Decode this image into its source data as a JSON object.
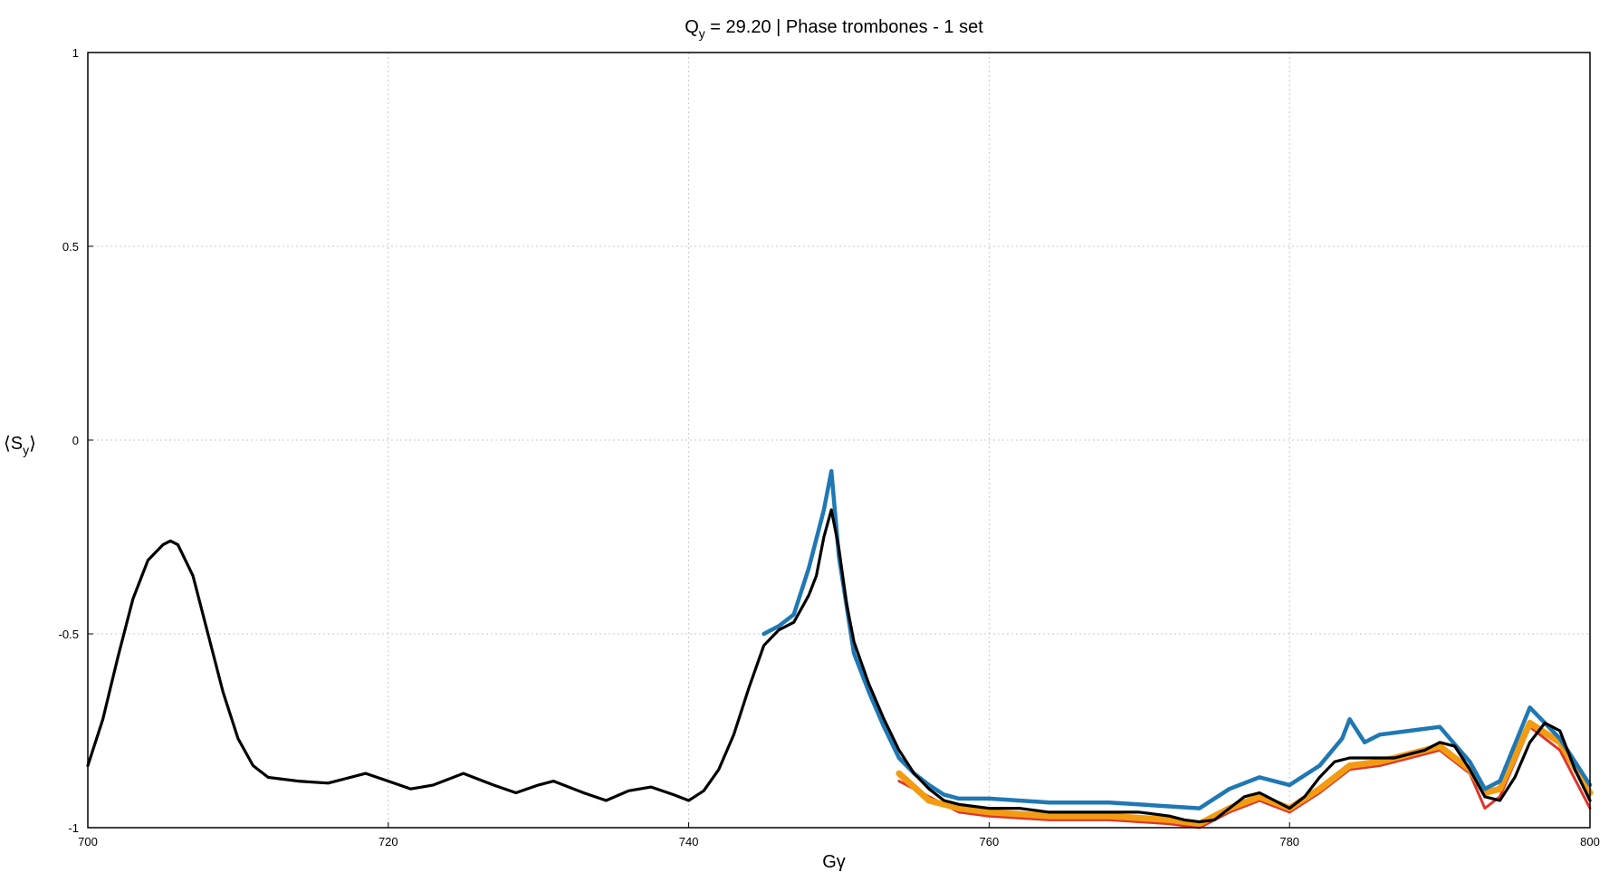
{
  "chart_data": {
    "type": "line",
    "title": {
      "main": "Q",
      "sub": "y",
      "rest": " = 29.20 | Phase trombones - 1 set"
    },
    "xlabel": "Gγ",
    "ylabel": {
      "open": "⟨S",
      "sub": "y",
      "close": "⟩"
    },
    "xlim": [
      700,
      800
    ],
    "ylim": [
      -1,
      1
    ],
    "x_ticks": [
      "700",
      "720",
      "740",
      "760",
      "780",
      "800"
    ],
    "y_ticks": [
      "1",
      "0.5",
      "0",
      "-0.5",
      "-1"
    ],
    "x_tick_values": [
      700,
      720,
      740,
      760,
      780,
      800
    ],
    "y_tick_values": [
      1,
      0.5,
      0,
      -0.5,
      -1
    ],
    "grid": true,
    "legend": "none",
    "colors": {
      "black": "#000000",
      "blue": "#1f78b4",
      "cyan": "#22a6c9",
      "purple": "#9b2fd0",
      "orange": "#f39c12",
      "yellow": "#e8c300",
      "red": "#e0342a",
      "green": "#2ca02c",
      "grid": "#c8c8c8"
    },
    "series": [
      {
        "color": "black",
        "x": [
          700,
          701,
          702,
          703,
          704,
          705,
          705.5,
          706,
          707,
          708,
          709,
          710,
          711,
          712,
          713,
          714,
          716,
          718.5,
          720,
          721.5,
          723,
          725,
          727,
          728.5,
          730,
          731,
          733,
          734.5,
          736,
          737.5,
          739,
          740,
          741,
          742,
          743,
          744,
          745,
          746,
          747,
          748,
          748.5,
          749,
          749.5,
          750,
          750.5,
          751,
          752,
          753,
          754,
          755,
          756,
          757,
          758,
          759,
          760,
          762,
          764,
          766,
          768,
          770,
          772,
          773,
          774,
          775,
          776,
          777,
          778,
          779,
          780,
          781,
          782,
          783,
          784,
          785,
          786,
          787,
          788,
          789,
          790,
          791,
          792,
          793,
          794,
          795,
          796,
          797,
          798,
          799,
          800
        ],
        "y": [
          -0.84,
          -0.72,
          -0.56,
          -0.41,
          -0.31,
          -0.27,
          -0.26,
          -0.27,
          -0.35,
          -0.5,
          -0.65,
          -0.77,
          -0.84,
          -0.87,
          -0.875,
          -0.88,
          -0.885,
          -0.86,
          -0.88,
          -0.9,
          -0.89,
          -0.86,
          -0.89,
          -0.91,
          -0.89,
          -0.88,
          -0.91,
          -0.93,
          -0.905,
          -0.895,
          -0.915,
          -0.93,
          -0.905,
          -0.85,
          -0.76,
          -0.64,
          -0.53,
          -0.49,
          -0.47,
          -0.4,
          -0.35,
          -0.25,
          -0.18,
          -0.28,
          -0.42,
          -0.52,
          -0.63,
          -0.72,
          -0.8,
          -0.86,
          -0.9,
          -0.93,
          -0.94,
          -0.945,
          -0.95,
          -0.95,
          -0.96,
          -0.96,
          -0.96,
          -0.96,
          -0.97,
          -0.98,
          -0.985,
          -0.98,
          -0.95,
          -0.92,
          -0.91,
          -0.93,
          -0.95,
          -0.92,
          -0.87,
          -0.83,
          -0.82,
          -0.82,
          -0.82,
          -0.82,
          -0.81,
          -0.8,
          -0.78,
          -0.79,
          -0.85,
          -0.92,
          -0.93,
          -0.87,
          -0.78,
          -0.73,
          -0.75,
          -0.85,
          -0.93
        ]
      },
      {
        "color": "blue",
        "x": [
          745,
          746,
          747,
          748,
          749,
          749.5,
          750,
          751,
          752,
          753,
          754,
          755,
          756,
          757,
          758,
          760,
          764,
          768,
          772,
          774,
          776,
          778,
          780,
          782,
          783.5,
          784,
          785,
          786,
          788,
          790,
          792,
          793,
          794,
          796,
          798,
          800
        ],
        "y": [
          -0.5,
          -0.48,
          -0.45,
          -0.33,
          -0.18,
          -0.08,
          -0.3,
          -0.55,
          -0.65,
          -0.74,
          -0.82,
          -0.86,
          -0.89,
          -0.915,
          -0.925,
          -0.925,
          -0.935,
          -0.935,
          -0.945,
          -0.95,
          -0.9,
          -0.87,
          -0.89,
          -0.84,
          -0.77,
          -0.72,
          -0.78,
          -0.76,
          -0.75,
          -0.74,
          -0.83,
          -0.9,
          -0.88,
          -0.69,
          -0.77,
          -0.89
        ]
      },
      {
        "color": "orange",
        "x": [
          754,
          756,
          758,
          760,
          764,
          768,
          772,
          774,
          776,
          778,
          780,
          782,
          784,
          786,
          788,
          790,
          792,
          793,
          794,
          796,
          798,
          800
        ],
        "y": [
          -0.86,
          -0.93,
          -0.95,
          -0.96,
          -0.97,
          -0.97,
          -0.98,
          -0.99,
          -0.95,
          -0.92,
          -0.95,
          -0.9,
          -0.84,
          -0.83,
          -0.81,
          -0.79,
          -0.85,
          -0.91,
          -0.9,
          -0.73,
          -0.78,
          -0.91
        ]
      },
      {
        "color": "red",
        "x": [
          754,
          758,
          760,
          764,
          768,
          772,
          774,
          776,
          778,
          780,
          782,
          784,
          786,
          788,
          790,
          792,
          793,
          794,
          796,
          798,
          800
        ],
        "y": [
          -0.88,
          -0.96,
          -0.97,
          -0.98,
          -0.98,
          -0.99,
          -1.0,
          -0.96,
          -0.93,
          -0.96,
          -0.91,
          -0.85,
          -0.84,
          -0.82,
          -0.8,
          -0.86,
          -0.95,
          -0.92,
          -0.74,
          -0.8,
          -0.95
        ]
      }
    ]
  }
}
